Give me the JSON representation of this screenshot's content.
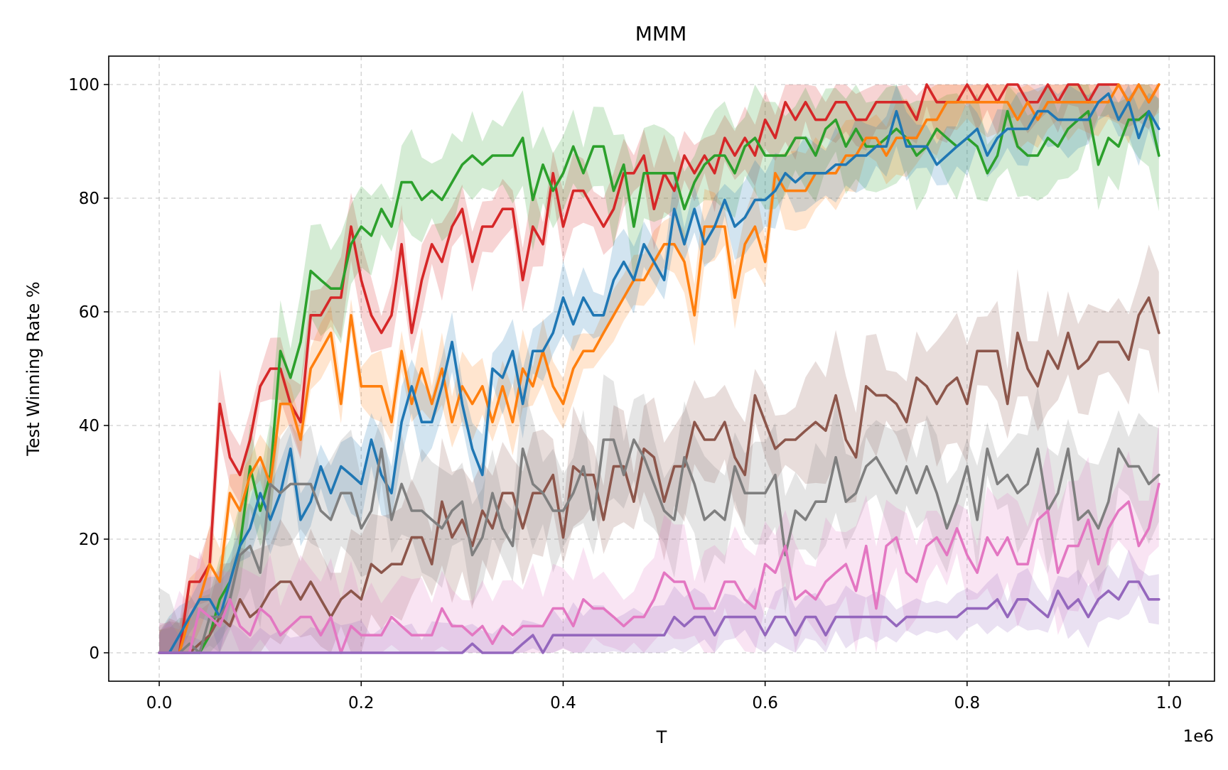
{
  "chart_data": {
    "type": "line",
    "title": "MMM",
    "xlabel": "T",
    "ylabel": "Test Winning Rate %",
    "x_offset_label": "1e6",
    "xlim": [
      -0.05,
      1.045
    ],
    "ylim": [
      -5,
      105
    ],
    "x_ticks": [
      0.0,
      0.2,
      0.4,
      0.6,
      0.8,
      1.0
    ],
    "x_tick_labels": [
      "0.0",
      "0.2",
      "0.4",
      "0.6",
      "0.8",
      "1.0"
    ],
    "y_ticks": [
      0,
      20,
      40,
      60,
      80,
      100
    ],
    "y_tick_labels": [
      "0",
      "20",
      "40",
      "60",
      "80",
      "100"
    ],
    "grid": true,
    "legend": "none",
    "x": [
      0.0,
      0.01,
      0.02,
      0.03,
      0.04,
      0.05,
      0.06,
      0.07,
      0.08,
      0.09,
      0.1,
      0.11,
      0.12,
      0.13,
      0.14,
      0.15,
      0.16,
      0.17,
      0.18,
      0.19,
      0.2,
      0.21,
      0.22,
      0.23,
      0.24,
      0.25,
      0.26,
      0.27,
      0.28,
      0.29,
      0.3,
      0.31,
      0.32,
      0.33,
      0.34,
      0.35,
      0.36,
      0.37,
      0.38,
      0.39,
      0.4,
      0.41,
      0.42,
      0.43,
      0.44,
      0.45,
      0.46,
      0.47,
      0.48,
      0.49,
      0.5,
      0.51,
      0.52,
      0.53,
      0.54,
      0.55,
      0.56,
      0.57,
      0.58,
      0.59,
      0.6,
      0.61,
      0.62,
      0.63,
      0.64,
      0.65,
      0.66,
      0.67,
      0.68,
      0.69,
      0.7,
      0.71,
      0.72,
      0.73,
      0.74,
      0.75,
      0.76,
      0.77,
      0.78,
      0.79,
      0.8,
      0.81,
      0.82,
      0.83,
      0.84,
      0.85,
      0.86,
      0.87,
      0.88,
      0.89,
      0.9,
      0.91,
      0.92,
      0.93,
      0.94,
      0.95,
      0.96,
      0.97,
      0.98,
      0.99
    ],
    "series": [
      {
        "color": "#d62728",
        "values": [
          0,
          0,
          0,
          12.5,
          12.5,
          15.6,
          43.8,
          34.4,
          31.3,
          37.5,
          46.9,
          50,
          50,
          43.8,
          40.6,
          59.4,
          59.4,
          62.5,
          62.5,
          75,
          65.6,
          59.4,
          56.3,
          59.4,
          71.9,
          56.3,
          65.6,
          71.9,
          68.8,
          75,
          78.1,
          68.8,
          75,
          75,
          78.1,
          78.1,
          65.6,
          75,
          71.9,
          84.4,
          75,
          81.3,
          81.3,
          78.1,
          75,
          78.1,
          84.4,
          84.4,
          87.5,
          78.1,
          84.4,
          81.3,
          87.5,
          84.4,
          87.5,
          84.4,
          90.6,
          87.5,
          90.6,
          87.5,
          93.8,
          90.6,
          96.9,
          93.8,
          96.9,
          93.8,
          93.8,
          96.9,
          96.9,
          93.8,
          93.8,
          96.9,
          96.9,
          96.9,
          96.9,
          93.8,
          100,
          96.9,
          96.9,
          96.9,
          100,
          96.9,
          100,
          96.9,
          100,
          100,
          96.9,
          96.9,
          100,
          96.9,
          100,
          100,
          96.9,
          100,
          100,
          100,
          96.9,
          100,
          96.9,
          100
        ],
        "band": 5
      },
      {
        "color": "#2ca02c",
        "values": [
          0,
          0,
          0,
          0,
          0,
          3.1,
          9.4,
          12.5,
          18.8,
          32.8,
          25,
          31.3,
          53.1,
          48.4,
          54.7,
          67.2,
          65.6,
          64.1,
          64.1,
          71.9,
          75,
          73.4,
          78.1,
          75,
          82.8,
          82.8,
          79.7,
          81.3,
          79.7,
          82.8,
          85.9,
          87.5,
          85.9,
          87.5,
          87.5,
          87.5,
          90.6,
          79.7,
          85.9,
          81.3,
          84.4,
          89.1,
          84.4,
          89.1,
          89.1,
          81.3,
          85.9,
          75,
          84.4,
          84.4,
          84.4,
          84.4,
          78.1,
          82.8,
          85.9,
          87.5,
          87.5,
          84.4,
          89.1,
          90.6,
          87.5,
          87.5,
          87.5,
          90.6,
          90.6,
          87.5,
          92.2,
          93.8,
          89.1,
          92.2,
          89.1,
          89.1,
          90.6,
          92.2,
          90.6,
          87.5,
          89.1,
          92.2,
          90.6,
          89.1,
          90.6,
          89.1,
          84.4,
          87.5,
          95.3,
          89.1,
          87.5,
          87.5,
          90.6,
          89.1,
          92.2,
          93.8,
          95.3,
          85.9,
          90.6,
          89.1,
          93.8,
          93.8,
          95.3,
          87.5
        ],
        "band": 7
      },
      {
        "color": "#ff7f0e",
        "values": [
          0,
          0,
          0,
          6.3,
          9.4,
          15.6,
          12.5,
          28.1,
          25,
          31.3,
          34.4,
          29.7,
          43.8,
          43.8,
          37.5,
          50,
          53.1,
          56.3,
          43.8,
          59.4,
          46.9,
          46.9,
          46.9,
          40.6,
          53.1,
          43.8,
          50,
          43.8,
          50,
          40.6,
          46.9,
          43.8,
          46.9,
          40.6,
          46.9,
          40.6,
          50,
          46.9,
          53.1,
          46.9,
          43.8,
          50,
          53.1,
          53.1,
          56.3,
          59.4,
          62.5,
          65.6,
          65.6,
          68.8,
          71.9,
          71.9,
          68.8,
          59.4,
          75,
          75,
          75,
          62.5,
          71.9,
          75,
          68.8,
          84.4,
          81.3,
          81.3,
          81.3,
          84.4,
          84.4,
          84.4,
          87.5,
          87.5,
          90.6,
          90.6,
          87.5,
          90.6,
          90.6,
          90.6,
          93.8,
          93.8,
          96.9,
          96.9,
          96.9,
          96.9,
          96.9,
          96.9,
          96.9,
          93.8,
          96.9,
          93.8,
          96.9,
          96.9,
          96.9,
          96.9,
          96.9,
          96.9,
          96.9,
          100,
          96.9,
          100,
          96.9,
          100
        ],
        "band": 5
      },
      {
        "color": "#1f77b4",
        "values": [
          0,
          0,
          3.1,
          6.3,
          9.4,
          9.4,
          6.3,
          12.5,
          18.8,
          21.9,
          28.1,
          23.4,
          28.1,
          35.9,
          23.4,
          26.6,
          32.8,
          28.1,
          32.8,
          31.3,
          29.7,
          37.5,
          31.3,
          28.1,
          40.6,
          46.9,
          40.6,
          40.6,
          46.9,
          54.7,
          43.8,
          35.9,
          31.3,
          50,
          48.4,
          53.1,
          43.8,
          53.1,
          53.1,
          56.3,
          62.5,
          57.8,
          62.5,
          59.4,
          59.4,
          65.6,
          68.8,
          65.6,
          71.9,
          68.8,
          65.6,
          78.1,
          71.9,
          78.1,
          71.9,
          75,
          79.7,
          75,
          76.6,
          79.7,
          79.7,
          81.3,
          84.4,
          82.8,
          84.4,
          84.4,
          84.4,
          85.9,
          85.9,
          87.5,
          87.5,
          89.1,
          89.1,
          95.3,
          89.1,
          89.1,
          89.1,
          85.9,
          87.5,
          89.1,
          90.6,
          92.2,
          87.5,
          90.6,
          92.2,
          92.2,
          92.2,
          95.3,
          95.3,
          93.8,
          93.8,
          93.8,
          93.8,
          96.9,
          98.4,
          93.8,
          96.9,
          90.6,
          95.3,
          92.2
        ],
        "band": 5
      },
      {
        "color": "#8c564b",
        "values": [
          0,
          0,
          0,
          0,
          1.6,
          3.1,
          6.3,
          4.7,
          9.4,
          6.3,
          7.8,
          10.9,
          12.5,
          12.5,
          9.4,
          12.5,
          9.4,
          6.3,
          9.4,
          10.9,
          9.4,
          15.6,
          14.1,
          15.6,
          15.6,
          20.3,
          20.3,
          15.6,
          26.6,
          20.3,
          23.4,
          18.8,
          25,
          21.9,
          28.1,
          28.1,
          21.9,
          28.1,
          28.1,
          31.3,
          20.3,
          32.8,
          31.3,
          31.3,
          23.4,
          32.8,
          32.8,
          26.6,
          35.9,
          34.4,
          26.6,
          32.8,
          32.8,
          40.6,
          37.5,
          37.5,
          40.6,
          34.4,
          31.3,
          45.3,
          40.6,
          35.9,
          37.5,
          37.5,
          39.1,
          40.6,
          39.1,
          45.3,
          37.5,
          34.4,
          46.9,
          45.3,
          45.3,
          43.8,
          40.6,
          48.4,
          46.9,
          43.8,
          46.9,
          48.4,
          43.8,
          53.1,
          53.1,
          53.1,
          43.8,
          56.3,
          50,
          46.9,
          53.1,
          50,
          56.3,
          50,
          51.6,
          54.7,
          54.7,
          54.7,
          51.6,
          59.4,
          62.5,
          56.3
        ],
        "band": 8
      },
      {
        "color": "#7f7f7f",
        "values": [
          0,
          0,
          0,
          1.6,
          0,
          6.3,
          6.3,
          9.4,
          17.2,
          18.8,
          14.1,
          29.7,
          28.1,
          29.7,
          29.7,
          29.7,
          25,
          23.4,
          28.1,
          28.1,
          21.9,
          25,
          35.9,
          23.4,
          29.7,
          25,
          25,
          23.4,
          21.9,
          25,
          26.6,
          17.2,
          20.3,
          28.1,
          21.9,
          18.8,
          35.9,
          29.7,
          28.1,
          25,
          25,
          28.1,
          32.8,
          23.4,
          37.5,
          37.5,
          31.3,
          37.5,
          34.4,
          29.7,
          25,
          23.4,
          34.4,
          29.7,
          23.4,
          25,
          23.4,
          32.8,
          28.1,
          28.1,
          28.1,
          31.3,
          17.2,
          25,
          23.4,
          26.6,
          26.6,
          34.4,
          26.6,
          28.1,
          32.8,
          34.4,
          31.3,
          28.1,
          32.8,
          28.1,
          32.8,
          28.1,
          21.9,
          26.6,
          32.8,
          23.4,
          35.9,
          29.7,
          31.3,
          28.1,
          29.7,
          35.9,
          25,
          28.1,
          35.9,
          23.4,
          25,
          21.9,
          26.6,
          35.9,
          32.8,
          32.8,
          29.7,
          31.3
        ],
        "band": 8
      },
      {
        "color": "#e377c2",
        "values": [
          0,
          0,
          0,
          0,
          7.8,
          6.3,
          4.7,
          9.4,
          4.7,
          3.1,
          7.8,
          6.3,
          3.1,
          4.7,
          6.3,
          6.3,
          3.1,
          6.3,
          0,
          4.7,
          3.1,
          3.1,
          3.1,
          6.3,
          4.7,
          3.1,
          3.1,
          3.1,
          7.8,
          4.7,
          4.7,
          3.1,
          4.7,
          1.6,
          4.7,
          3.1,
          4.7,
          4.7,
          4.7,
          7.8,
          7.8,
          4.7,
          9.4,
          7.8,
          7.8,
          6.3,
          4.7,
          6.3,
          6.3,
          9.4,
          14.1,
          12.5,
          12.5,
          7.8,
          7.8,
          7.8,
          12.5,
          12.5,
          9.4,
          7.8,
          15.6,
          14.1,
          18.8,
          9.4,
          10.9,
          9.4,
          12.5,
          14.1,
          15.6,
          10.9,
          18.8,
          7.8,
          18.8,
          20.3,
          14.1,
          12.5,
          18.8,
          20.3,
          17.2,
          21.9,
          17.2,
          14.1,
          20.3,
          17.2,
          20.3,
          15.6,
          15.6,
          23.4,
          25,
          14.1,
          18.8,
          18.8,
          23.4,
          15.6,
          21.9,
          25,
          26.6,
          18.8,
          21.9,
          29.7
        ],
        "band": 8
      },
      {
        "color": "#9467bd",
        "values": [
          0,
          0,
          0,
          0,
          0,
          0,
          0,
          0,
          0,
          0,
          0,
          0,
          0,
          0,
          0,
          0,
          0,
          0,
          0,
          0,
          0,
          0,
          0,
          0,
          0,
          0,
          0,
          0,
          0,
          0,
          0,
          1.6,
          0,
          0,
          0,
          0,
          1.6,
          3.1,
          0,
          3.1,
          3.1,
          3.1,
          3.1,
          3.1,
          3.1,
          3.1,
          3.1,
          3.1,
          3.1,
          3.1,
          3.1,
          6.3,
          4.7,
          6.3,
          6.3,
          3.1,
          6.3,
          6.3,
          6.3,
          6.3,
          3.1,
          6.3,
          6.3,
          3.1,
          6.3,
          6.3,
          3.1,
          6.3,
          6.3,
          6.3,
          6.3,
          6.3,
          6.3,
          4.7,
          6.3,
          6.3,
          6.3,
          6.3,
          6.3,
          6.3,
          7.8,
          7.8,
          7.8,
          9.4,
          6.3,
          9.4,
          9.4,
          7.8,
          6.3,
          10.9,
          7.8,
          9.4,
          6.3,
          9.4,
          10.9,
          9.4,
          12.5,
          12.5,
          9.4,
          9.4
        ],
        "band": 4
      }
    ]
  }
}
